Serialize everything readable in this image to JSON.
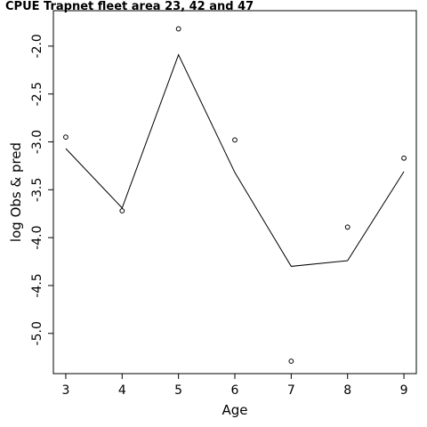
{
  "chart_data": {
    "type": "line",
    "title": "CPUE Trapnet fleet area 23, 42 and 47",
    "xlabel": "Age",
    "ylabel": "log Obs & pred",
    "x": [
      3,
      4,
      5,
      6,
      7,
      8,
      9
    ],
    "xticks": [
      "3",
      "4",
      "5",
      "6",
      "7",
      "8",
      "9"
    ],
    "yticks": [
      "-2.0",
      "-2.5",
      "-3.0",
      "-3.5",
      "-4.0",
      "-4.5",
      "-5.0"
    ],
    "xlim": [
      2.78,
      9.22
    ],
    "ylim": [
      -5.42,
      -1.63
    ],
    "series": [
      {
        "style": "points",
        "values": [
          -2.95,
          -3.72,
          -1.82,
          -2.98,
          -5.29,
          -3.89,
          -3.17
        ]
      },
      {
        "style": "line",
        "values": [
          -3.07,
          -3.69,
          -2.09,
          -3.32,
          -4.3,
          -4.24,
          -3.31
        ]
      }
    ],
    "grid": false
  }
}
